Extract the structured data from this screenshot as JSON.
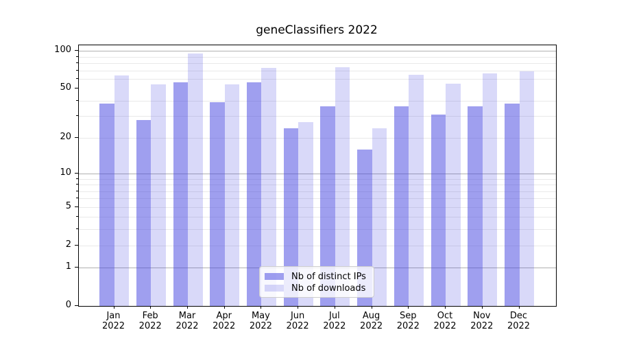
{
  "chart_data": {
    "type": "bar",
    "title": "geneClassifiers 2022",
    "categories": [
      "Jan 2022",
      "Feb 2022",
      "Mar 2022",
      "Apr 2022",
      "May 2022",
      "Jun 2022",
      "Jul 2022",
      "Aug 2022",
      "Sep 2022",
      "Oct 2022",
      "Nov 2022",
      "Dec 2022"
    ],
    "x_tick_months": [
      "Jan",
      "Feb",
      "Mar",
      "Apr",
      "May",
      "Jun",
      "Jul",
      "Aug",
      "Sep",
      "Oct",
      "Nov",
      "Dec"
    ],
    "x_tick_year": "2022",
    "series": [
      {
        "name": "Nb of distinct IPs",
        "values": [
          38,
          28,
          56,
          39,
          56,
          24,
          36,
          16,
          36,
          31,
          36,
          38
        ]
      },
      {
        "name": "Nb of downloads",
        "values": [
          64,
          54,
          95,
          54,
          73,
          27,
          74,
          24,
          65,
          55,
          66,
          69
        ]
      }
    ],
    "yscale": "log1p",
    "ylim": [
      0,
      100
    ],
    "y_tick_values": [
      0,
      1,
      2,
      5,
      10,
      20,
      50,
      100
    ],
    "y_tick_labels": [
      "0",
      "1",
      "2",
      "5",
      "10",
      "20",
      "50",
      "100"
    ],
    "y_major_gridlines": [
      1,
      10,
      100
    ],
    "y_minor_gridlines": [
      2,
      3,
      4,
      5,
      6,
      7,
      8,
      9,
      20,
      30,
      40,
      60,
      70,
      80,
      90
    ],
    "grid": "on",
    "legend_position": "lower center"
  },
  "style": {
    "bar_color_ips": "rgba(64,64,224,0.5)",
    "bar_color_downloads": "rgba(64,64,224,0.2)",
    "grid_major_color": "#b0b0b0",
    "grid_minor_color": "#e9e9e9",
    "axis_color": "#000000",
    "legend_border_color": "#cccccc"
  }
}
